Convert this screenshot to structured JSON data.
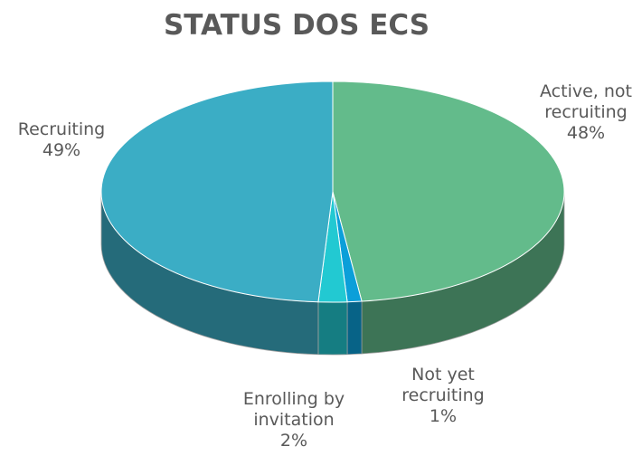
{
  "chart_data": {
    "type": "pie3d",
    "title": "STATUS DOS ECS",
    "categories": [
      "Active, not recruiting",
      "Not yet recruiting",
      "Enrolling by invitation",
      "Recruiting"
    ],
    "values": [
      48,
      1,
      2,
      49
    ],
    "value_labels": [
      "48%",
      "1%",
      "2%",
      "49%"
    ],
    "colors": [
      "#63bb8b",
      "#0b9fd9",
      "#22c9d2",
      "#3badc5"
    ]
  }
}
